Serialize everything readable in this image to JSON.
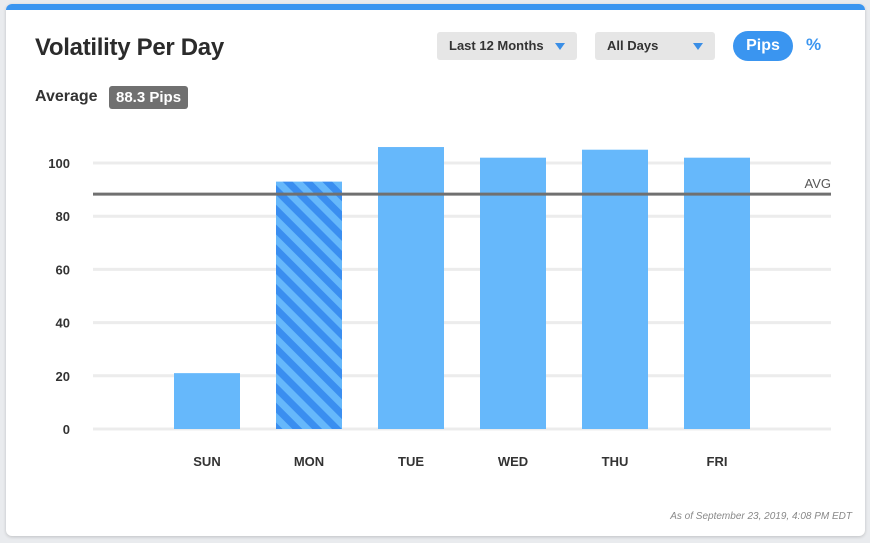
{
  "header": {
    "title": "Volatility Per Day",
    "range_select": "Last 12 Months",
    "days_select": "All Days",
    "unit_pips": "Pips",
    "unit_percent": "%"
  },
  "summary": {
    "average_label": "Average",
    "average_value": "88.3 Pips"
  },
  "footnote": "As of September 23, 2019, 4:08 PM EDT",
  "colors": {
    "accent": "#3a95f0",
    "bar": "#66b8fb",
    "bar_highlight": "#3a8ef0",
    "avg_line": "#707070"
  },
  "chart_data": {
    "type": "bar",
    "categories": [
      "SUN",
      "MON",
      "TUE",
      "WED",
      "THU",
      "FRI"
    ],
    "values": [
      21,
      93,
      106,
      102,
      105,
      102
    ],
    "highlighted": "MON",
    "average": 88.3,
    "average_label": "AVG",
    "yticks": [
      0,
      20,
      40,
      60,
      80,
      100
    ],
    "ylim": [
      0,
      110
    ],
    "grid": true,
    "title": "",
    "xlabel": "",
    "ylabel": ""
  }
}
